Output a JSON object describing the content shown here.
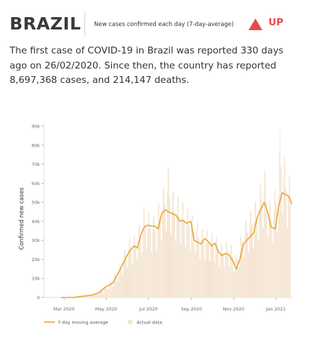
{
  "header": {
    "country": "BRAZIL",
    "subtitle": "New cases confirmed each day (7-day-average)",
    "trend_label": "UP",
    "trend_color": "#e8494a",
    "trend_icon": "triangle-up-icon"
  },
  "intro": {
    "text": "The first case of COVID-19 in Brazil was reported 330 days ago on 26/02/2020. Since then, the country has reported 8,697,368 cases, and 214,147 deaths."
  },
  "chart_data": {
    "type": "line",
    "ylabel": "Confirmed new cases",
    "xlabel": "",
    "ylim": [
      0,
      90000
    ],
    "y_ticks": [
      0,
      10000,
      20000,
      30000,
      40000,
      50000,
      60000,
      70000,
      80000,
      90000
    ],
    "y_tick_labels": [
      "0",
      "10k",
      "20k",
      "30k",
      "40k",
      "50k",
      "60k",
      "70k",
      "80k",
      "90k"
    ],
    "x_range": [
      "2020-02-01",
      "2021-01-25"
    ],
    "x_ticks": [
      {
        "date": "2020-03-01",
        "label": "Mar 2020"
      },
      {
        "date": "2020-05-01",
        "label": "May 2020"
      },
      {
        "date": "2020-07-01",
        "label": "Jul 2020"
      },
      {
        "date": "2020-09-01",
        "label": "Sep 2020"
      },
      {
        "date": "2020-11-01",
        "label": "Nov 2020"
      },
      {
        "date": "2021-01-01",
        "label": "Jan 2021"
      }
    ],
    "legend_position": "bottom-left",
    "grid": false,
    "colors": {
      "average": "#e8a434",
      "actual": "#f5e6d3"
    },
    "series": [
      {
        "name": "7-day moving average",
        "style": "line",
        "points": [
          [
            "2020-02-26",
            0
          ],
          [
            "2020-03-15",
            50
          ],
          [
            "2020-03-31",
            800
          ],
          [
            "2020-04-10",
            1200
          ],
          [
            "2020-04-20",
            2500
          ],
          [
            "2020-04-30",
            5500
          ],
          [
            "2020-05-10",
            7500
          ],
          [
            "2020-05-20",
            14000
          ],
          [
            "2020-05-31",
            22000
          ],
          [
            "2020-06-05",
            25000
          ],
          [
            "2020-06-10",
            27000
          ],
          [
            "2020-06-15",
            26000
          ],
          [
            "2020-06-20",
            33000
          ],
          [
            "2020-06-25",
            37000
          ],
          [
            "2020-06-30",
            38000
          ],
          [
            "2020-07-05",
            37500
          ],
          [
            "2020-07-10",
            37500
          ],
          [
            "2020-07-15",
            36000
          ],
          [
            "2020-07-20",
            44000
          ],
          [
            "2020-07-25",
            46000
          ],
          [
            "2020-07-30",
            45000
          ],
          [
            "2020-08-05",
            44000
          ],
          [
            "2020-08-10",
            43000
          ],
          [
            "2020-08-15",
            40000
          ],
          [
            "2020-08-20",
            40500
          ],
          [
            "2020-08-25",
            39000
          ],
          [
            "2020-08-31",
            40000
          ],
          [
            "2020-09-05",
            30000
          ],
          [
            "2020-09-10",
            29000
          ],
          [
            "2020-09-15",
            28000
          ],
          [
            "2020-09-20",
            31000
          ],
          [
            "2020-09-25",
            29500
          ],
          [
            "2020-09-30",
            27000
          ],
          [
            "2020-10-05",
            28500
          ],
          [
            "2020-10-10",
            24000
          ],
          [
            "2020-10-15",
            22000
          ],
          [
            "2020-10-20",
            23000
          ],
          [
            "2020-10-25",
            22500
          ],
          [
            "2020-10-31",
            19000
          ],
          [
            "2020-11-05",
            15000
          ],
          [
            "2020-11-10",
            20000
          ],
          [
            "2020-11-15",
            28000
          ],
          [
            "2020-11-20",
            30000
          ],
          [
            "2020-11-25",
            32000
          ],
          [
            "2020-11-30",
            34000
          ],
          [
            "2020-12-05",
            42000
          ],
          [
            "2020-12-10",
            46000
          ],
          [
            "2020-12-15",
            50000
          ],
          [
            "2020-12-20",
            45000
          ],
          [
            "2020-12-25",
            37000
          ],
          [
            "2020-12-31",
            36000
          ],
          [
            "2021-01-05",
            48000
          ],
          [
            "2021-01-10",
            55000
          ],
          [
            "2021-01-15",
            54000
          ],
          [
            "2021-01-20",
            53000
          ],
          [
            "2021-01-24",
            49000
          ]
        ]
      },
      {
        "name": "Actual data",
        "style": "bars",
        "points": [
          [
            "2020-03-05",
            0
          ],
          [
            "2020-03-20",
            300
          ],
          [
            "2020-04-05",
            1000
          ],
          [
            "2020-04-20",
            3000
          ],
          [
            "2020-05-01",
            6000
          ],
          [
            "2020-05-10",
            10000
          ],
          [
            "2020-05-20",
            17000
          ],
          [
            "2020-06-01",
            30000
          ],
          [
            "2020-06-10",
            32000
          ],
          [
            "2020-06-20",
            40000
          ],
          [
            "2020-06-25",
            48000
          ],
          [
            "2020-07-01",
            45000
          ],
          [
            "2020-07-10",
            42000
          ],
          [
            "2020-07-20",
            55000
          ],
          [
            "2020-07-25",
            60000
          ],
          [
            "2020-07-29",
            69000
          ],
          [
            "2020-08-05",
            56000
          ],
          [
            "2020-08-15",
            52000
          ],
          [
            "2020-08-25",
            48000
          ],
          [
            "2020-09-05",
            42000
          ],
          [
            "2020-09-15",
            36000
          ],
          [
            "2020-09-25",
            35000
          ],
          [
            "2020-10-05",
            33000
          ],
          [
            "2020-10-15",
            28000
          ],
          [
            "2020-10-25",
            30000
          ],
          [
            "2020-11-05",
            22000
          ],
          [
            "2020-11-15",
            38000
          ],
          [
            "2020-11-25",
            45000
          ],
          [
            "2020-12-05",
            52000
          ],
          [
            "2020-12-15",
            69000
          ],
          [
            "2020-12-25",
            48000
          ],
          [
            "2021-01-05",
            65000
          ],
          [
            "2021-01-07",
            87000
          ],
          [
            "2021-01-15",
            70000
          ],
          [
            "2021-01-22",
            62000
          ]
        ]
      }
    ]
  }
}
